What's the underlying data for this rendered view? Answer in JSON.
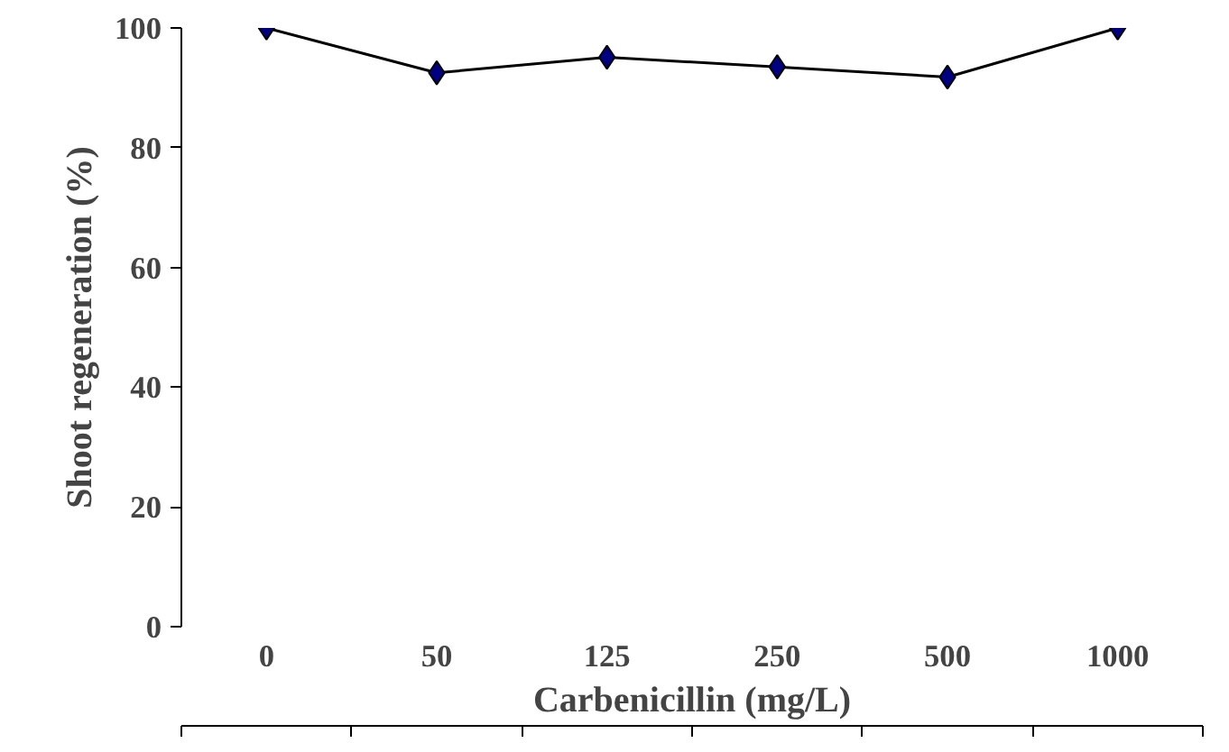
{
  "chart_data": {
    "type": "line",
    "xlabel": "Carbenicillin (mg/L)",
    "ylabel": "Shoot regeneration (%)",
    "categories": [
      "0",
      "50",
      "125",
      "250",
      "500",
      "1000"
    ],
    "series": [
      {
        "color": "#000080",
        "values": [
          100,
          92.5,
          95.1,
          93.5,
          91.8,
          100
        ]
      }
    ],
    "ylim": [
      0,
      100
    ],
    "yticks": [
      0,
      20,
      40,
      60,
      80,
      100
    ],
    "grid": false,
    "marker": "diamond",
    "line_style": "solid"
  }
}
